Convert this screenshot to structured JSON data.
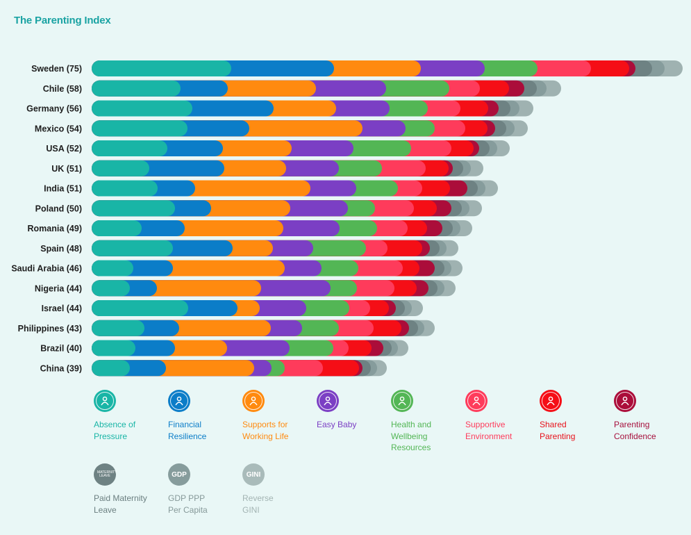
{
  "title": "The Parenting Index",
  "chart_data": {
    "type": "bar",
    "orientation": "horizontal",
    "stacked": true,
    "title": "The Parenting Index",
    "categories": [
      "Sweden (75)",
      "Chile (58)",
      "Germany (56)",
      "Mexico (54)",
      "USA (52)",
      "UK (51)",
      "India (51)",
      "Poland (50)",
      "Romania (49)",
      "Spain (48)",
      "Saudi Arabia (46)",
      "Nigeria (44)",
      "Israel (44)",
      "Philippines (43)",
      "Brazil (40)",
      "China (39)"
    ],
    "series": [
      {
        "name": "Absence of Pressure",
        "color": "#19b5a6",
        "values": [
          201,
          128,
          145,
          138,
          109,
          83,
          95,
          120,
          72,
          117,
          60,
          55,
          139,
          76,
          63,
          55
        ]
      },
      {
        "name": "Financial Resilience",
        "color": "#0b7dc8",
        "values": [
          148,
          68,
          117,
          89,
          80,
          108,
          54,
          52,
          62,
          86,
          57,
          39,
          71,
          50,
          57,
          52
        ]
      },
      {
        "name": "Supports for Working Life",
        "color": "#ff8a0f",
        "values": [
          125,
          127,
          90,
          163,
          99,
          89,
          166,
          114,
          142,
          58,
          161,
          150,
          32,
          132,
          75,
          127
        ]
      },
      {
        "name": "Easy Baby",
        "color": "#7b3fc4",
        "values": [
          92,
          101,
          77,
          62,
          89,
          76,
          66,
          83,
          81,
          58,
          53,
          100,
          67,
          45,
          90,
          25
        ]
      },
      {
        "name": "Health and Wellbeing Resources",
        "color": "#53b655",
        "values": [
          76,
          91,
          55,
          42,
          83,
          62,
          60,
          39,
          54,
          76,
          53,
          38,
          62,
          53,
          63,
          19
        ]
      },
      {
        "name": "Supportive Environment",
        "color": "#fe3b5b",
        "values": [
          77,
          44,
          47,
          44,
          58,
          63,
          35,
          56,
          44,
          31,
          64,
          54,
          30,
          50,
          22,
          55
        ]
      },
      {
        "name": "Shared Parenting",
        "color": "#f50e16",
        "values": [
          55,
          42,
          40,
          32,
          32,
          33,
          40,
          33,
          28,
          50,
          24,
          32,
          27,
          40,
          33,
          52
        ]
      },
      {
        "name": "Parenting Confidence",
        "color": "#ab0d3a",
        "values": [
          9,
          22,
          15,
          11,
          8,
          6,
          25,
          21,
          22,
          11,
          22,
          17,
          10,
          11,
          17,
          5
        ]
      },
      {
        "name": "Paid Maternity Leave",
        "color": "#6e8283",
        "values": [
          24,
          18,
          17,
          16,
          15,
          15,
          15,
          15,
          15,
          14,
          14,
          13,
          13,
          13,
          12,
          12
        ]
      },
      {
        "name": "GDP PPP Per Capita",
        "color": "#869c9c",
        "values": [
          18,
          14,
          13,
          12,
          11,
          11,
          11,
          11,
          11,
          10,
          10,
          10,
          10,
          9,
          9,
          9
        ]
      },
      {
        "name": "Reverse GINI",
        "color": "#9fb2b1",
        "values": [
          26,
          21,
          20,
          19,
          18,
          18,
          18,
          18,
          17,
          17,
          16,
          16,
          16,
          15,
          15,
          14
        ]
      }
    ],
    "xlabel": "",
    "ylabel": "",
    "legend_position": "bottom"
  },
  "legend": [
    {
      "label": "Absence of\nPressure",
      "icon": "absence-of-pressure-icon",
      "color": "#19b5a6",
      "text_color": "#19b5a6",
      "glyph": ""
    },
    {
      "label": "Financial\nResilience",
      "icon": "financial-resilience-icon",
      "color": "#0b7dc8",
      "text_color": "#0b7dc8",
      "glyph": ""
    },
    {
      "label": "Supports for\nWorking Life",
      "icon": "supports-working-life-icon",
      "color": "#ff8a0f",
      "text_color": "#ff8a0f",
      "glyph": ""
    },
    {
      "label": "Easy Baby",
      "icon": "easy-baby-icon",
      "color": "#7b3fc4",
      "text_color": "#7b3fc4",
      "glyph": ""
    },
    {
      "label": "Health and\nWellbeing\nResources",
      "icon": "health-wellbeing-icon",
      "color": "#53b655",
      "text_color": "#53b655",
      "glyph": ""
    },
    {
      "label": "Supportive\nEnvironment",
      "icon": "supportive-environment-icon",
      "color": "#fe3b5b",
      "text_color": "#fe3b5b",
      "glyph": ""
    },
    {
      "label": "Shared\nParenting",
      "icon": "shared-parenting-icon",
      "color": "#f50e16",
      "text_color": "#e8111a",
      "glyph": ""
    },
    {
      "label": "Parenting\nConfidence",
      "icon": "parenting-confidence-icon",
      "color": "#ab0d3a",
      "text_color": "#a60f3c",
      "glyph": ""
    },
    {
      "label": "Paid Maternity\nLeave",
      "icon": "maternity-leave-icon",
      "color": "#6e8283",
      "text_color": "#6b7f80",
      "glyph": "Maternity Leave"
    },
    {
      "label": "GDP PPP\nPer Capita",
      "icon": "gdp-icon",
      "color": "#869c9c",
      "text_color": "#869999",
      "glyph": "GDP"
    },
    {
      "label": "Reverse\nGINI",
      "icon": "gini-icon",
      "color": "#a9bbba",
      "text_color": "#a3b4b3",
      "glyph": "GINI"
    }
  ]
}
